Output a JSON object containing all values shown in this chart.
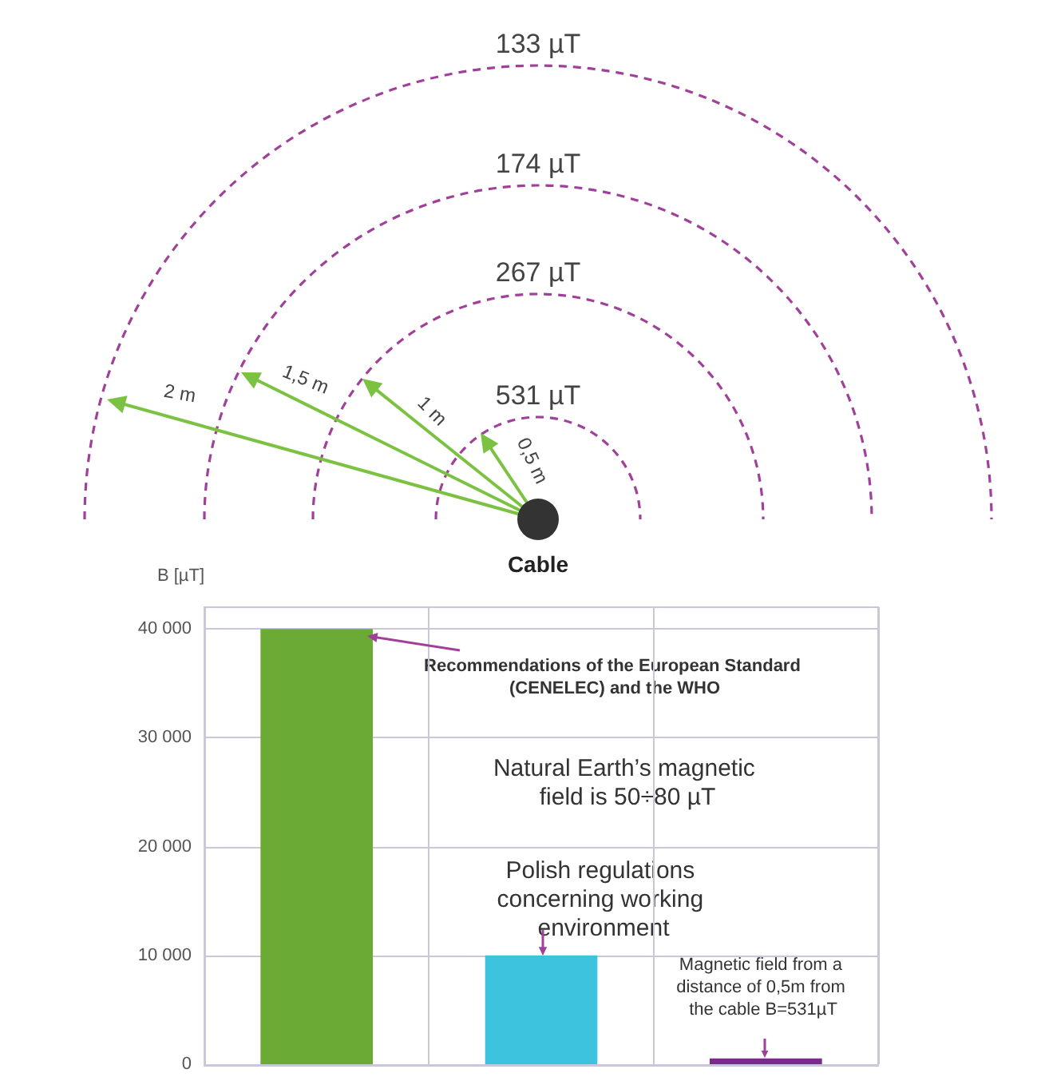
{
  "chart_data": {
    "type": "bar",
    "ylabel": "B [µT]",
    "categories": [
      null,
      null,
      null
    ],
    "values": [
      40000,
      10000,
      531
    ],
    "colors": [
      "#6aaa35",
      "#3ec3de",
      "#7b2a8a"
    ],
    "ylim": [
      0,
      42000
    ],
    "yticks": [
      0,
      {
        "value": 10000,
        "label": "10 000"
      },
      {
        "value": 20000,
        "label": "20 000"
      },
      {
        "value": 30000,
        "label": "30 000"
      },
      {
        "value": 40000,
        "label": "40 000"
      }
    ],
    "grid": true,
    "annotations": [
      "133 µT",
      "174 µT",
      "267 µT",
      "531 µT",
      "2 m",
      "1,5 m",
      "1 m",
      "0,5 m",
      "Cable",
      "Recommendations of the European Standard (CENELEC) and the WHO",
      "Natural Earth’s magnetic field is 50÷80 µT",
      "Polish regulations concerning working environment",
      "Magnetic field from a distance of 0,5m from the cable B=531µT"
    ]
  }
}
